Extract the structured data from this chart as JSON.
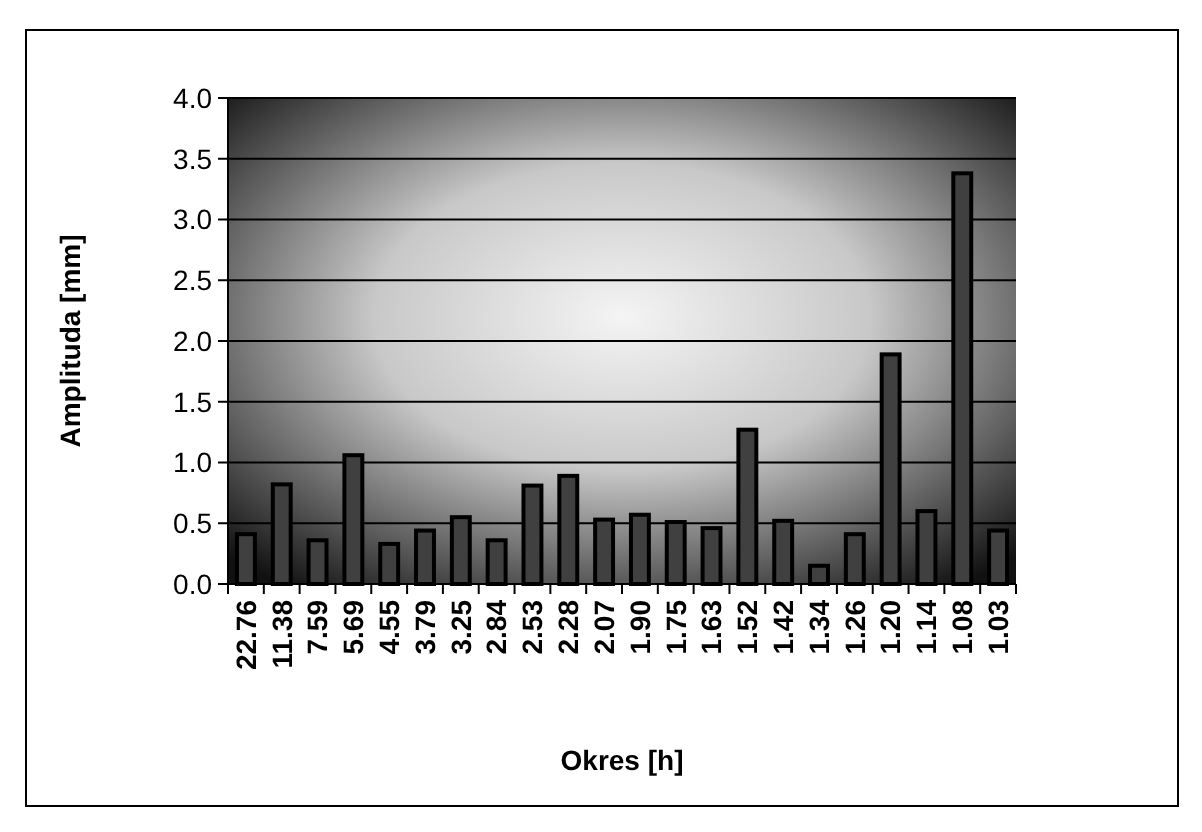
{
  "chart_data": {
    "type": "bar",
    "xlabel": "Okres [h]",
    "ylabel": "Amplituda [mm]",
    "categories": [
      "22.76",
      "11.38",
      "7.59",
      "5.69",
      "4.55",
      "3.79",
      "3.25",
      "2.84",
      "2.53",
      "2.28",
      "2.07",
      "1.90",
      "1.75",
      "1.63",
      "1.52",
      "1.42",
      "1.34",
      "1.26",
      "1.20",
      "1.14",
      "1.08",
      "1.03"
    ],
    "values": [
      0.41,
      0.82,
      0.36,
      1.06,
      0.33,
      0.44,
      0.55,
      0.36,
      0.81,
      0.89,
      0.53,
      0.57,
      0.51,
      0.46,
      1.27,
      0.52,
      0.15,
      0.41,
      1.89,
      0.6,
      3.38,
      0.44
    ],
    "color": "#404040",
    "ylim": [
      0,
      4
    ],
    "yticks": [
      {
        "value": 0,
        "label": "0.0"
      },
      {
        "value": 0.5,
        "label": "0.5"
      },
      {
        "value": 1,
        "label": "1.0"
      },
      {
        "value": 1.5,
        "label": "1.5"
      },
      {
        "value": 2,
        "label": "2.0"
      },
      {
        "value": 2.5,
        "label": "2.5"
      },
      {
        "value": 3,
        "label": "3.0"
      },
      {
        "value": 3.5,
        "label": "3.5"
      },
      {
        "value": 4,
        "label": "4.0"
      }
    ],
    "grid": "y"
  }
}
